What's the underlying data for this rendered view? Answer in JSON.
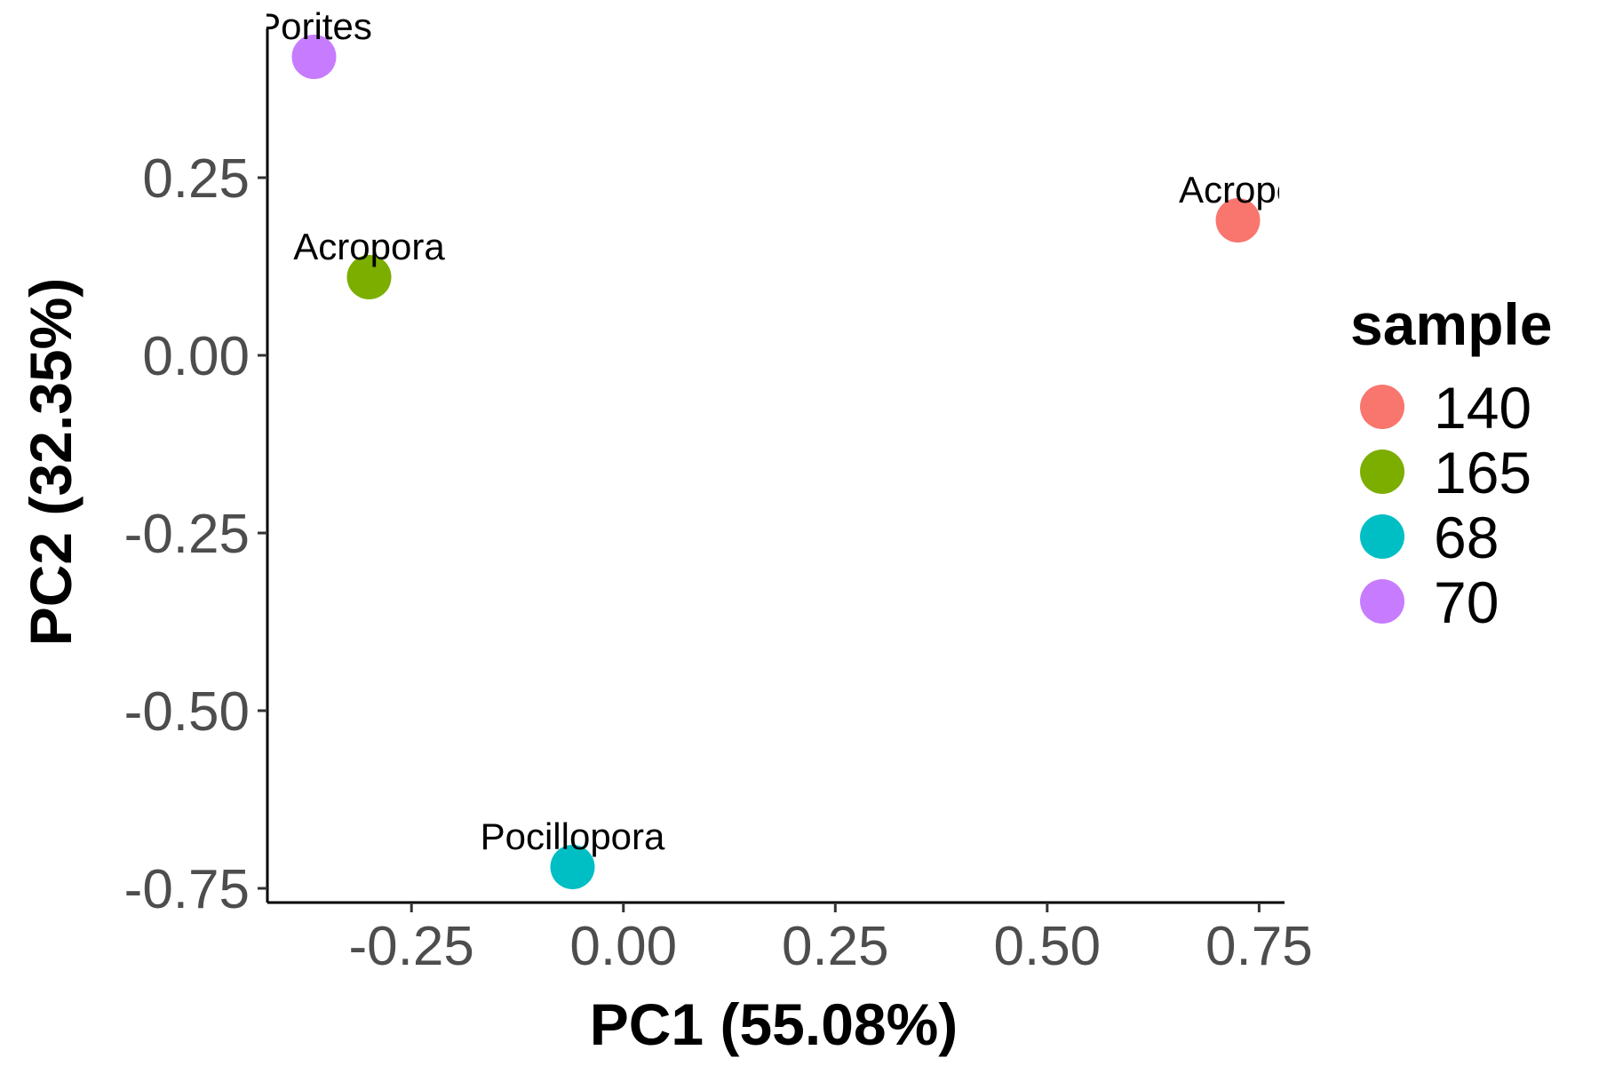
{
  "chart_data": {
    "type": "scatter",
    "xlabel": "PC1 (55.08%)",
    "ylabel": "PC2 (32.35%)",
    "xlim": [
      -0.42,
      0.78
    ],
    "ylim": [
      -0.77,
      0.46
    ],
    "x_ticks": [
      -0.25,
      0.0,
      0.25,
      0.5,
      0.75
    ],
    "x_tick_labels": [
      "-0.25",
      "0.00",
      "0.25",
      "0.50",
      "0.75"
    ],
    "y_ticks": [
      0.25,
      0.0,
      -0.25,
      -0.5,
      -0.75
    ],
    "y_tick_labels": [
      "0.25",
      "0.00",
      "-0.25",
      "-0.50",
      "-0.75"
    ],
    "grid": false,
    "legend_position": "right",
    "legend": {
      "title": "sample",
      "entries": [
        {
          "label": "140",
          "color": "#F8766D"
        },
        {
          "label": "165",
          "color": "#7CAE00"
        },
        {
          "label": "68",
          "color": "#00BFC4"
        },
        {
          "label": "70",
          "color": "#C77CFF"
        }
      ]
    },
    "points": [
      {
        "sample": "140",
        "label": "Acropo",
        "x": 0.725,
        "y": 0.19,
        "color": "#F8766D"
      },
      {
        "sample": "165",
        "label": "Acropora",
        "x": -0.3,
        "y": 0.11,
        "color": "#7CAE00"
      },
      {
        "sample": "68",
        "label": "Pocillopora",
        "x": -0.06,
        "y": -0.72,
        "color": "#00BFC4"
      },
      {
        "sample": "70",
        "label": "Porites",
        "x": -0.365,
        "y": 0.42,
        "color": "#C77CFF"
      }
    ]
  }
}
